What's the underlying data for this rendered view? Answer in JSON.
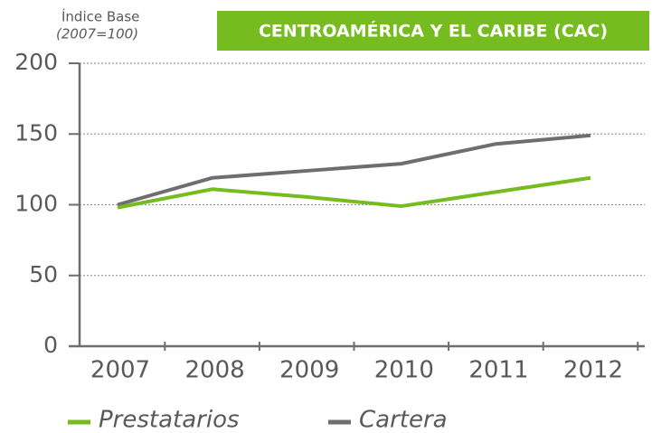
{
  "chart_data": {
    "type": "line",
    "title": "CENTROAMÉRICA Y EL CARIBE (CAC)",
    "y_label": "Índice Base",
    "y_sublabel": "(2007=100)",
    "categories": [
      "2007",
      "2008",
      "2009",
      "2010",
      "2011",
      "2012"
    ],
    "series": [
      {
        "name": "Prestatarios",
        "color": "#76bc21",
        "values": [
          98,
          111,
          105.5,
          99,
          109,
          119
        ]
      },
      {
        "name": "Cartera",
        "color": "#6d6e71",
        "values": [
          100,
          119,
          124,
          129,
          143,
          149
        ]
      }
    ],
    "ylim": [
      0,
      200
    ],
    "yticks": [
      0,
      50,
      100,
      150,
      200
    ],
    "grid": true,
    "title_color": "#76bc21"
  }
}
